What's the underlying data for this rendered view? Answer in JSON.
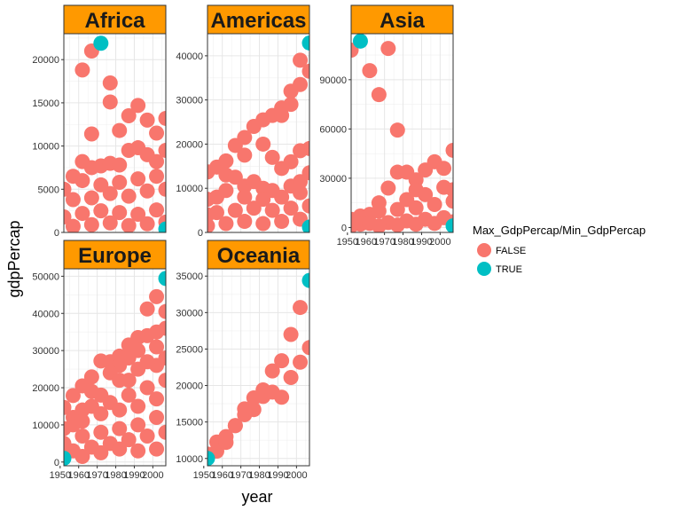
{
  "chart_data": {
    "type": "scatter",
    "xlabel": "year",
    "ylabel": "gdpPercap",
    "x_ticks": [
      "1950",
      "1960",
      "1970",
      "1980",
      "1990",
      "2000"
    ],
    "xlim": [
      1952,
      2007
    ],
    "legend": {
      "title": "Max_GdpPercap/Min_GdpPercap",
      "position": "right",
      "items": [
        {
          "label": "FALSE",
          "color": "#F8766D"
        },
        {
          "label": "TRUE",
          "color": "#00BFC4"
        }
      ]
    },
    "strip_color": "#FF9900",
    "panels": [
      {
        "name": "Africa",
        "ylim": [
          0,
          23000
        ],
        "y_ticks": [
          0,
          5000,
          10000,
          15000,
          20000
        ],
        "false_points": [
          [
            1962,
            18800
          ],
          [
            1967,
            21000
          ],
          [
            1977,
            17300
          ],
          [
            1977,
            15100
          ],
          [
            1967,
            11400
          ],
          [
            1987,
            13500
          ],
          [
            1982,
            11800
          ],
          [
            1992,
            14700
          ],
          [
            1997,
            13000
          ],
          [
            2002,
            11500
          ],
          [
            2007,
            13200
          ],
          [
            1992,
            9800
          ],
          [
            2007,
            9500
          ],
          [
            1997,
            9000
          ],
          [
            1962,
            8200
          ],
          [
            1967,
            7500
          ],
          [
            1972,
            7700
          ],
          [
            1977,
            8000
          ],
          [
            1982,
            7800
          ],
          [
            1987,
            9500
          ],
          [
            2002,
            8200
          ],
          [
            1957,
            6500
          ],
          [
            1952,
            5000
          ],
          [
            1962,
            6000
          ],
          [
            1972,
            5500
          ],
          [
            1982,
            5800
          ],
          [
            1992,
            6200
          ],
          [
            2002,
            6500
          ],
          [
            1957,
            3800
          ],
          [
            1967,
            4000
          ],
          [
            1977,
            4500
          ],
          [
            1987,
            4200
          ],
          [
            1997,
            4800
          ],
          [
            2007,
            5000
          ],
          [
            1952,
            1800
          ],
          [
            1962,
            2200
          ],
          [
            1972,
            2500
          ],
          [
            1982,
            2300
          ],
          [
            1992,
            2100
          ],
          [
            2002,
            2600
          ],
          [
            1957,
            700
          ],
          [
            1967,
            900
          ],
          [
            1977,
            1100
          ],
          [
            1987,
            800
          ],
          [
            1997,
            1000
          ],
          [
            2007,
            1200
          ]
        ],
        "true_points": [
          [
            1972,
            21900
          ],
          [
            2007,
            400
          ]
        ]
      },
      {
        "name": "Americas",
        "ylim": [
          0,
          45000
        ],
        "y_ticks": [
          0,
          10000,
          20000,
          30000,
          40000
        ],
        "false_points": [
          [
            1992,
            28200
          ],
          [
            1997,
            32000
          ],
          [
            2002,
            39000
          ],
          [
            2007,
            36500
          ],
          [
            2002,
            33500
          ],
          [
            1982,
            25500
          ],
          [
            1987,
            26500
          ],
          [
            1977,
            24000
          ],
          [
            1972,
            21500
          ],
          [
            1967,
            19700
          ],
          [
            1992,
            26500
          ],
          [
            1997,
            29000
          ],
          [
            2007,
            19000
          ],
          [
            2002,
            18500
          ],
          [
            1987,
            17000
          ],
          [
            1992,
            14500
          ],
          [
            1997,
            16000
          ],
          [
            2007,
            13500
          ],
          [
            1952,
            13700
          ],
          [
            1957,
            14800
          ],
          [
            1962,
            16200
          ],
          [
            1972,
            17500
          ],
          [
            1982,
            20000
          ],
          [
            1962,
            13000
          ],
          [
            1967,
            12500
          ],
          [
            1972,
            10500
          ],
          [
            1977,
            11500
          ],
          [
            1982,
            10000
          ],
          [
            1987,
            9500
          ],
          [
            1997,
            10500
          ],
          [
            2002,
            11500
          ],
          [
            1952,
            7500
          ],
          [
            1957,
            8000
          ],
          [
            1962,
            9500
          ],
          [
            1972,
            8000
          ],
          [
            1982,
            7500
          ],
          [
            1992,
            8000
          ],
          [
            2002,
            9000
          ],
          [
            1952,
            4000
          ],
          [
            1957,
            4500
          ],
          [
            1967,
            5000
          ],
          [
            1977,
            5500
          ],
          [
            1987,
            5000
          ],
          [
            1997,
            5500
          ],
          [
            2007,
            6000
          ],
          [
            1952,
            1500
          ],
          [
            1962,
            2000
          ],
          [
            1972,
            2500
          ],
          [
            1982,
            2000
          ],
          [
            1992,
            2500
          ],
          [
            2002,
            3000
          ]
        ],
        "true_points": [
          [
            2007,
            42900
          ],
          [
            2007,
            1200
          ]
        ]
      },
      {
        "name": "Asia",
        "ylim": [
          -3000,
          118000
        ],
        "y_ticks": [
          0,
          30000,
          60000,
          90000
        ],
        "false_points": [
          [
            1952,
            108000
          ],
          [
            1962,
            95500
          ],
          [
            1967,
            80900
          ],
          [
            1972,
            109000
          ],
          [
            1977,
            59300
          ],
          [
            1977,
            33700
          ],
          [
            1982,
            33700
          ],
          [
            1992,
            35000
          ],
          [
            1997,
            40000
          ],
          [
            2007,
            47000
          ],
          [
            2002,
            36000
          ],
          [
            1972,
            24000
          ],
          [
            1987,
            29000
          ],
          [
            2007,
            23000
          ],
          [
            2002,
            24500
          ],
          [
            1992,
            20000
          ],
          [
            1987,
            23000
          ],
          [
            1962,
            8000
          ],
          [
            1967,
            15000
          ],
          [
            1982,
            17000
          ],
          [
            1952,
            5000
          ],
          [
            1957,
            7000
          ],
          [
            1967,
            10000
          ],
          [
            1977,
            11000
          ],
          [
            1987,
            12000
          ],
          [
            1997,
            14000
          ],
          [
            2007,
            16000
          ],
          [
            1952,
            1000
          ],
          [
            1957,
            2000
          ],
          [
            1962,
            2500
          ],
          [
            1972,
            3000
          ],
          [
            1982,
            4000
          ],
          [
            1992,
            5000
          ],
          [
            2002,
            6000
          ],
          [
            1967,
            1000
          ],
          [
            1977,
            1500
          ],
          [
            1987,
            2000
          ],
          [
            1997,
            2500
          ],
          [
            2007,
            3500
          ]
        ],
        "true_points": [
          [
            1957,
            113500
          ],
          [
            2007,
            1000
          ]
        ]
      },
      {
        "name": "Europe",
        "ylim": [
          -1000,
          52000
        ],
        "y_ticks": [
          0,
          10000,
          20000,
          30000,
          40000,
          50000
        ],
        "false_points": [
          [
            1952,
            14700
          ],
          [
            1957,
            17900
          ],
          [
            1962,
            20500
          ],
          [
            1967,
            22900
          ],
          [
            1972,
            27200
          ],
          [
            1977,
            27000
          ],
          [
            1982,
            28500
          ],
          [
            1987,
            31500
          ],
          [
            1992,
            33500
          ],
          [
            1997,
            41200
          ],
          [
            2002,
            44500
          ],
          [
            2007,
            40500
          ],
          [
            2002,
            35000
          ],
          [
            2007,
            36000
          ],
          [
            1997,
            34000
          ],
          [
            1987,
            28000
          ],
          [
            1982,
            26000
          ],
          [
            1992,
            30000
          ],
          [
            2002,
            31000
          ],
          [
            1977,
            24000
          ],
          [
            1982,
            22000
          ],
          [
            1992,
            25000
          ],
          [
            2002,
            26000
          ],
          [
            1967,
            19000
          ],
          [
            1972,
            18000
          ],
          [
            1987,
            22000
          ],
          [
            1997,
            27000
          ],
          [
            2007,
            28000
          ],
          [
            1957,
            12000
          ],
          [
            1962,
            14000
          ],
          [
            1967,
            15000
          ],
          [
            1977,
            16000
          ],
          [
            1987,
            18000
          ],
          [
            1997,
            20000
          ],
          [
            2007,
            22000
          ],
          [
            1952,
            9000
          ],
          [
            1957,
            10000
          ],
          [
            1962,
            11000
          ],
          [
            1972,
            13000
          ],
          [
            1982,
            14000
          ],
          [
            1992,
            15000
          ],
          [
            2002,
            17000
          ],
          [
            1952,
            5000
          ],
          [
            1962,
            7000
          ],
          [
            1972,
            8000
          ],
          [
            1982,
            9000
          ],
          [
            1992,
            10000
          ],
          [
            2002,
            12000
          ],
          [
            1952,
            2000
          ],
          [
            1957,
            3000
          ],
          [
            1967,
            4000
          ],
          [
            1977,
            5000
          ],
          [
            1987,
            6000
          ],
          [
            1997,
            7000
          ],
          [
            2007,
            8000
          ],
          [
            1962,
            1500
          ],
          [
            1972,
            2500
          ],
          [
            1982,
            3500
          ],
          [
            1992,
            3000
          ],
          [
            2002,
            3500
          ]
        ],
        "true_points": [
          [
            2007,
            49400
          ],
          [
            1952,
            1000
          ]
        ]
      },
      {
        "name": "Oceania",
        "ylim": [
          9000,
          36000
        ],
        "y_ticks": [
          10000,
          15000,
          20000,
          25000,
          30000,
          35000
        ],
        "false_points": [
          [
            1952,
            10600
          ],
          [
            1957,
            11000
          ],
          [
            1957,
            12250
          ],
          [
            1962,
            12200
          ],
          [
            1962,
            13000
          ],
          [
            1967,
            14500
          ],
          [
            1967,
            14500
          ],
          [
            1972,
            16000
          ],
          [
            1972,
            16800
          ],
          [
            1977,
            16700
          ],
          [
            1977,
            18300
          ],
          [
            1982,
            18500
          ],
          [
            1982,
            19400
          ],
          [
            1987,
            19100
          ],
          [
            1987,
            22000
          ],
          [
            1992,
            18400
          ],
          [
            1992,
            23400
          ],
          [
            1997,
            21100
          ],
          [
            1997,
            27000
          ],
          [
            2002,
            23200
          ],
          [
            2002,
            30700
          ],
          [
            2007,
            25200
          ]
        ],
        "true_points": [
          [
            2007,
            34400
          ],
          [
            1952,
            10000
          ]
        ]
      }
    ]
  }
}
